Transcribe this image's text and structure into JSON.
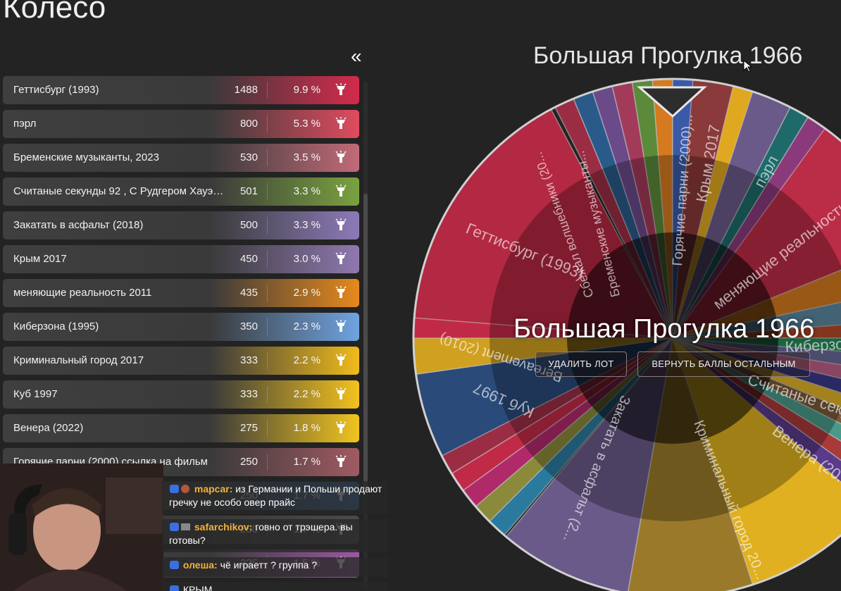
{
  "page_title": "Колесо",
  "collapse_label": "«",
  "wheel": {
    "title": "Большая Прогулка 1966",
    "winner": "Большая Прогулка 1966",
    "delete_button": "УДАЛИТЬ ЛОТ",
    "return_button": "ВЕРНУТЬ БАЛЛЫ ОСТАЛЬНЫМ",
    "labels": {
      "gettysburg": "Геттисбург (1993)",
      "pearl": "пэрл",
      "crimea": "Крым 2017",
      "hot_guys": "Горячие парни (2000)...",
      "bremen": "Бременские музыканты...",
      "magicians": "Сбежал волшебники (20...",
      "reality": "меняющие реальность...",
      "cyberzone": "Киберзона",
      "seconds": "Считаные секун...",
      "venera": "Венера (20...",
      "crime_city": "Криминальный город 20...",
      "asphalt": "Закатать в асфальт (2...",
      "cube": "Куб 1997",
      "bereavement": "Bereavement (2010)"
    }
  },
  "lots": [
    {
      "name": "Геттисбург (1993)",
      "amount": "1488",
      "percent": "9.9 %",
      "color": "#d42a4c"
    },
    {
      "name": "пэрл",
      "amount": "800",
      "percent": "5.3 %",
      "color": "#e04b5e"
    },
    {
      "name": "Бременские музыканты, 2023",
      "amount": "530",
      "percent": "3.5 %",
      "color": "#c26a78"
    },
    {
      "name": "Считаные секунды 92 , С Рудгером Хауэром",
      "amount": "501",
      "percent": "3.3 %",
      "color": "#7aa23f"
    },
    {
      "name": "Закатать в асфальт (2018)",
      "amount": "500",
      "percent": "3.3 %",
      "color": "#8c7ab8"
    },
    {
      "name": "Крым 2017",
      "amount": "450",
      "percent": "3.0 %",
      "color": "#8f78b0"
    },
    {
      "name": "меняющие реальность 2011",
      "amount": "435",
      "percent": "2.9 %",
      "color": "#e6891c"
    },
    {
      "name": "Киберзона (1995)",
      "amount": "350",
      "percent": "2.3 %",
      "color": "#6fa3e0"
    },
    {
      "name": "Криминальный город 2017",
      "amount": "333",
      "percent": "2.2 %",
      "color": "#f0bb1c"
    },
    {
      "name": "Куб 1997",
      "amount": "333",
      "percent": "2.2 %",
      "color": "#f2c21e"
    },
    {
      "name": "Венера (2022)",
      "amount": "275",
      "percent": "1.8 %",
      "color": "#f0c420"
    },
    {
      "name": "Горячие парни (2000) ссылка на фильм",
      "amount": "250",
      "percent": "1.7 %",
      "color": "#a05a62"
    },
    {
      "name": "",
      "amount": "250",
      "percent": "1.7 %",
      "color": "#3a6fb0"
    },
    {
      "name": "",
      "amount": "250",
      "percent": "1.7 %",
      "color": "#4a4a4a"
    },
    {
      "name": "",
      "amount": "225",
      "percent": "1.5 %",
      "color": "#9a5aa0"
    }
  ],
  "chat": [
    {
      "user": "mapcar:",
      "text": "из Германии и Польши продают гречку не особо овер прайс"
    },
    {
      "user": "safarchikov:",
      "text": "говно от трэшера. вы готовы?"
    },
    {
      "user": "олеша:",
      "text": "чё играетт ? группа ?"
    },
    {
      "user": "",
      "text": "КРЫМ"
    }
  ]
}
